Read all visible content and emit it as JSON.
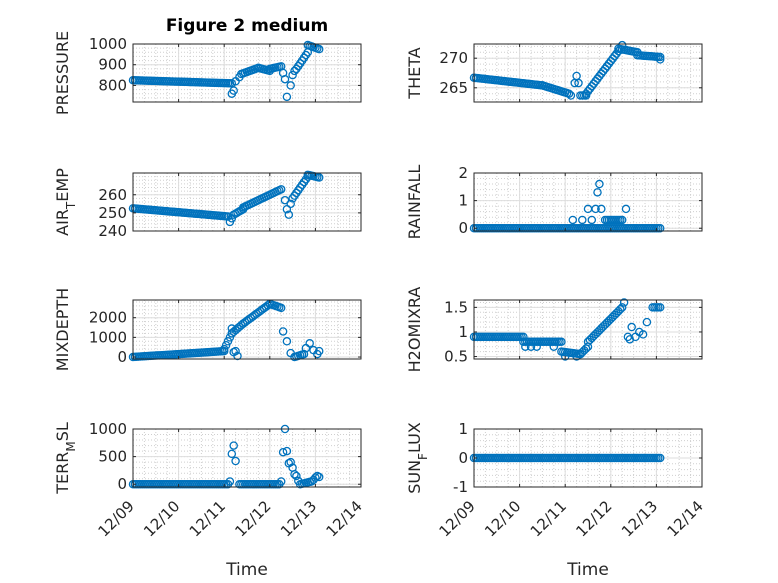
{
  "figure_title": "Figure 2 medium",
  "chart_data": [
    {
      "type": "scatter",
      "title": "Figure 2 medium",
      "ylabel_parts": [
        {
          "t": "PRESSURE"
        }
      ],
      "ylim": [
        720,
        1000
      ],
      "yticks": [
        800,
        900,
        1000
      ],
      "xlabel": "",
      "x_tick_labels": [],
      "grid": true,
      "series_color": "#0072BD",
      "segments": [
        {
          "x0": "12/09 00:00",
          "x1": "12/11 04:00",
          "y0": 825,
          "y1": 810,
          "step_h": 1
        },
        {
          "x0": "12/11 09:00",
          "x1": "12/11 18:00",
          "y0": 855,
          "y1": 885,
          "step_h": 1
        },
        {
          "x0": "12/11 18:00",
          "x1": "12/12 00:00",
          "y0": 885,
          "y1": 870,
          "step_h": 1
        },
        {
          "x0": "12/12 00:00",
          "x1": "12/12 06:00",
          "y0": 880,
          "y1": 892,
          "step_h": 1
        },
        {
          "x0": "12/12 14:00",
          "x1": "12/12 20:00",
          "y0": 880,
          "y1": 960,
          "step_h": 1
        },
        {
          "x0": "12/12 20:00",
          "x1": "12/13 02:00",
          "y0": 995,
          "y1": 975,
          "step_h": 1
        }
      ],
      "points": [
        {
          "x": "12/11 04:00",
          "y": 760
        },
        {
          "x": "12/11 05:00",
          "y": 775
        },
        {
          "x": "12/11 06:00",
          "y": 820
        },
        {
          "x": "12/11 08:00",
          "y": 840
        },
        {
          "x": "12/12 07:00",
          "y": 860
        },
        {
          "x": "12/12 08:00",
          "y": 830
        },
        {
          "x": "12/12 09:00",
          "y": 745
        },
        {
          "x": "12/12 11:00",
          "y": 800
        },
        {
          "x": "12/12 12:00",
          "y": 850
        },
        {
          "x": "12/12 13:00",
          "y": 870
        }
      ]
    },
    {
      "type": "scatter",
      "title": "",
      "ylabel_parts": [
        {
          "t": "THETA"
        }
      ],
      "ylim": [
        262.6,
        272.4
      ],
      "yticks": [
        265,
        270
      ],
      "xlabel": "",
      "x_tick_labels": [],
      "grid": true,
      "series_color": "#0072BD",
      "segments": [
        {
          "x0": "12/09 00:00",
          "x1": "12/10 12:00",
          "y0": 266.7,
          "y1": 265.4,
          "step_h": 1
        },
        {
          "x0": "12/10 12:00",
          "x1": "12/11 02:00",
          "y0": 265.4,
          "y1": 264.0,
          "step_h": 1
        },
        {
          "x0": "12/11 08:00",
          "x1": "12/11 11:00",
          "y0": 263.7,
          "y1": 263.7,
          "step_h": 1
        },
        {
          "x0": "12/11 11:00",
          "x1": "12/12 04:00",
          "y0": 264.0,
          "y1": 271.2,
          "step_h": 1
        },
        {
          "x0": "12/12 04:00",
          "x1": "12/12 14:00",
          "y0": 271.6,
          "y1": 271.0,
          "step_h": 1
        },
        {
          "x0": "12/12 14:00",
          "x1": "12/13 02:00",
          "y0": 270.5,
          "y1": 270.2,
          "step_h": 1
        }
      ],
      "points": [
        {
          "x": "12/11 03:00",
          "y": 263.7
        },
        {
          "x": "12/11 05:00",
          "y": 265.8
        },
        {
          "x": "12/11 06:00",
          "y": 267.0
        },
        {
          "x": "12/11 07:00",
          "y": 265.8
        },
        {
          "x": "12/12 06:00",
          "y": 272.2
        },
        {
          "x": "12/13 02:00",
          "y": 269.8
        }
      ]
    },
    {
      "type": "scatter",
      "title": "",
      "ylabel_parts": [
        {
          "t": "AIR"
        },
        {
          "t": "T",
          "sub": true
        },
        {
          "t": "EMP"
        }
      ],
      "ylim": [
        240,
        272
      ],
      "yticks": [
        240,
        250,
        260
      ],
      "xlabel": "",
      "x_tick_labels": [],
      "grid": true,
      "series_color": "#0072BD",
      "segments": [
        {
          "x0": "12/09 00:00",
          "x1": "12/11 02:00",
          "y0": 252.5,
          "y1": 248.0,
          "step_h": 1
        },
        {
          "x0": "12/11 05:00",
          "x1": "12/11 10:00",
          "y0": 249.0,
          "y1": 252.0,
          "step_h": 1
        },
        {
          "x0": "12/11 10:00",
          "x1": "12/12 06:00",
          "y0": 253.0,
          "y1": 263.0,
          "step_h": 1
        },
        {
          "x0": "12/12 12:00",
          "x1": "12/12 20:00",
          "y0": 258.0,
          "y1": 270.0,
          "step_h": 1
        },
        {
          "x0": "12/12 20:00",
          "x1": "12/13 02:00",
          "y0": 271.0,
          "y1": 269.5,
          "step_h": 1
        }
      ],
      "points": [
        {
          "x": "12/11 03:00",
          "y": 245.0
        },
        {
          "x": "12/11 04:00",
          "y": 247.0
        },
        {
          "x": "12/12 08:00",
          "y": 257.0
        },
        {
          "x": "12/12 09:00",
          "y": 252.0
        },
        {
          "x": "12/12 10:00",
          "y": 249.0
        },
        {
          "x": "12/12 11:00",
          "y": 255.0
        }
      ]
    },
    {
      "type": "scatter",
      "title": "",
      "ylabel_parts": [
        {
          "t": "RAINFALL"
        }
      ],
      "ylim": [
        -0.1,
        2.0
      ],
      "yticks": [
        0,
        1,
        2
      ],
      "xlabel": "",
      "x_tick_labels": [],
      "grid": true,
      "series_color": "#0072BD",
      "segments": [
        {
          "x0": "12/09 00:00",
          "x1": "12/13 02:00",
          "y0": 0,
          "y1": 0,
          "step_h": 1
        },
        {
          "x0": "12/11 21:00",
          "x1": "12/12 06:00",
          "y0": 0.3,
          "y1": 0.3,
          "step_h": 1
        }
      ],
      "points": [
        {
          "x": "12/11 04:00",
          "y": 0.3
        },
        {
          "x": "12/11 09:00",
          "y": 0.3
        },
        {
          "x": "12/11 12:00",
          "y": 0.7
        },
        {
          "x": "12/11 14:00",
          "y": 0.3
        },
        {
          "x": "12/11 16:00",
          "y": 0.7
        },
        {
          "x": "12/11 17:00",
          "y": 1.3
        },
        {
          "x": "12/11 18:00",
          "y": 1.6
        },
        {
          "x": "12/11 19:00",
          "y": 0.7
        },
        {
          "x": "12/12 08:00",
          "y": 0.7
        }
      ]
    },
    {
      "type": "scatter",
      "title": "",
      "ylabel_parts": [
        {
          "t": "MIXDEPTH"
        }
      ],
      "ylim": [
        -100,
        2900
      ],
      "yticks": [
        0,
        1000,
        2000
      ],
      "xlabel": "",
      "x_tick_labels": [],
      "grid": true,
      "series_color": "#0072BD",
      "segments": [
        {
          "x0": "12/09 00:00",
          "x1": "12/11 00:00",
          "y0": 0,
          "y1": 300,
          "step_h": 1
        },
        {
          "x0": "12/11 00:00",
          "x1": "12/11 04:00",
          "y0": 400,
          "y1": 1200,
          "step_h": 1
        },
        {
          "x0": "12/11 04:00",
          "x1": "12/11 10:00",
          "y0": 1200,
          "y1": 1700,
          "step_h": 1
        },
        {
          "x0": "12/11 10:00",
          "x1": "12/12 00:00",
          "y0": 1700,
          "y1": 2700,
          "step_h": 1
        },
        {
          "x0": "12/12 00:00",
          "x1": "12/12 06:00",
          "y0": 2700,
          "y1": 2500,
          "step_h": 1
        },
        {
          "x0": "12/12 13:00",
          "x1": "12/12 18:00",
          "y0": 0,
          "y1": 150,
          "step_h": 1
        }
      ],
      "points": [
        {
          "x": "12/11 04:00",
          "y": 1450
        },
        {
          "x": "12/11 06:00",
          "y": 300
        },
        {
          "x": "12/11 07:00",
          "y": 50
        },
        {
          "x": "12/11 05:00",
          "y": 250
        },
        {
          "x": "12/12 07:00",
          "y": 1300
        },
        {
          "x": "12/12 09:00",
          "y": 800
        },
        {
          "x": "12/12 11:00",
          "y": 200
        },
        {
          "x": "12/12 19:00",
          "y": 450
        },
        {
          "x": "12/12 21:00",
          "y": 700
        },
        {
          "x": "12/12 23:00",
          "y": 350
        },
        {
          "x": "12/13 01:00",
          "y": 150
        },
        {
          "x": "12/13 02:00",
          "y": 300
        }
      ]
    },
    {
      "type": "scatter",
      "title": "",
      "ylabel_parts": [
        {
          "t": "H2OMIXRA"
        }
      ],
      "ylim": [
        0.45,
        1.65
      ],
      "yticks": [
        0.5,
        1,
        1.5
      ],
      "xlabel": "",
      "x_tick_labels": [],
      "grid": true,
      "series_color": "#0072BD",
      "segments": [
        {
          "x0": "12/09 00:00",
          "x1": "12/10 02:00",
          "y0": 0.9,
          "y1": 0.9,
          "step_h": 1
        },
        {
          "x0": "12/10 02:00",
          "x1": "12/10 22:00",
          "y0": 0.8,
          "y1": 0.8,
          "step_h": 1
        },
        {
          "x0": "12/10 22:00",
          "x1": "12/11 08:00",
          "y0": 0.6,
          "y1": 0.55,
          "step_h": 1
        },
        {
          "x0": "12/11 08:00",
          "x1": "12/11 12:00",
          "y0": 0.55,
          "y1": 0.7,
          "step_h": 1
        },
        {
          "x0": "12/11 12:00",
          "x1": "12/12 06:00",
          "y0": 0.8,
          "y1": 1.5,
          "step_h": 1
        },
        {
          "x0": "12/12 22:00",
          "x1": "12/13 02:00",
          "y0": 1.5,
          "y1": 1.5,
          "step_h": 1
        }
      ],
      "points": [
        {
          "x": "12/10 03:00",
          "y": 0.7
        },
        {
          "x": "12/10 06:00",
          "y": 0.7
        },
        {
          "x": "12/10 09:00",
          "y": 0.7
        },
        {
          "x": "12/10 18:00",
          "y": 0.7
        },
        {
          "x": "12/11 00:00",
          "y": 0.5
        },
        {
          "x": "12/11 06:00",
          "y": 0.5
        },
        {
          "x": "12/12 07:00",
          "y": 1.6
        },
        {
          "x": "12/12 09:00",
          "y": 0.9
        },
        {
          "x": "12/12 10:00",
          "y": 0.85
        },
        {
          "x": "12/12 11:00",
          "y": 1.1
        },
        {
          "x": "12/12 13:00",
          "y": 0.9
        },
        {
          "x": "12/12 15:00",
          "y": 1.0
        },
        {
          "x": "12/12 17:00",
          "y": 0.95
        },
        {
          "x": "12/12 19:00",
          "y": 1.2
        }
      ]
    },
    {
      "type": "scatter",
      "title": "",
      "ylabel_parts": [
        {
          "t": "TERR"
        },
        {
          "t": "M",
          "sub": true
        },
        {
          "t": "SL"
        }
      ],
      "ylim": [
        -50,
        1000
      ],
      "yticks": [
        0,
        500,
        1000
      ],
      "xlabel": "Time",
      "x_tick_labels": [
        "12/09",
        "12/10",
        "12/11",
        "12/12",
        "12/13",
        "12/14"
      ],
      "grid": true,
      "series_color": "#0072BD",
      "segments": [
        {
          "x0": "12/09 00:00",
          "x1": "12/11 02:00",
          "y0": 0,
          "y1": 0,
          "step_h": 1
        },
        {
          "x0": "12/11 08:00",
          "x1": "12/12 05:00",
          "y0": 0,
          "y1": 0,
          "step_h": 1
        },
        {
          "x0": "12/12 16:00",
          "x1": "12/12 22:00",
          "y0": 0,
          "y1": 50,
          "step_h": 1
        }
      ],
      "points": [
        {
          "x": "12/11 03:00",
          "y": 50
        },
        {
          "x": "12/11 04:00",
          "y": 550
        },
        {
          "x": "12/11 05:00",
          "y": 700
        },
        {
          "x": "12/11 06:00",
          "y": 420
        },
        {
          "x": "12/12 06:00",
          "y": 50
        },
        {
          "x": "12/12 07:00",
          "y": 580
        },
        {
          "x": "12/12 08:00",
          "y": 1000
        },
        {
          "x": "12/12 09:00",
          "y": 600
        },
        {
          "x": "12/12 10:00",
          "y": 380
        },
        {
          "x": "12/12 11:00",
          "y": 400
        },
        {
          "x": "12/12 12:00",
          "y": 300
        },
        {
          "x": "12/12 13:00",
          "y": 180
        },
        {
          "x": "12/12 14:00",
          "y": 150
        },
        {
          "x": "12/12 15:00",
          "y": 60
        },
        {
          "x": "12/12 23:00",
          "y": 80
        },
        {
          "x": "12/13 00:00",
          "y": 120
        },
        {
          "x": "12/13 01:00",
          "y": 150
        },
        {
          "x": "12/13 02:00",
          "y": 130
        }
      ]
    },
    {
      "type": "scatter",
      "title": "",
      "ylabel_parts": [
        {
          "t": "SUN"
        },
        {
          "t": "F",
          "sub": true
        },
        {
          "t": "LUX"
        }
      ],
      "ylim": [
        -1,
        1
      ],
      "yticks": [
        -1,
        0,
        1
      ],
      "xlabel": "Time",
      "x_tick_labels": [
        "12/09",
        "12/10",
        "12/11",
        "12/12",
        "12/13",
        "12/14"
      ],
      "grid": true,
      "series_color": "#0072BD",
      "segments": [
        {
          "x0": "12/09 00:00",
          "x1": "12/13 02:00",
          "y0": 0,
          "y1": 0,
          "step_h": 1
        }
      ],
      "points": []
    }
  ]
}
